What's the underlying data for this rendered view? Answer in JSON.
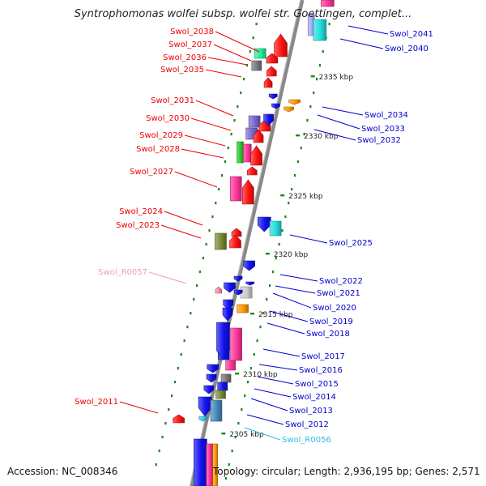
{
  "title": "Syntrophomonas wolfei subsp. wolfei str. Goettingen, complet...",
  "accession_label": "Accession: NC_008346",
  "topology_label": "Topology: circular; Length: 2,936,195 bp; Genes: 2,571",
  "colors": {
    "backbone": "#888888",
    "tick_minor": "#1a8a1a",
    "label_left": "#ee0000",
    "label_right": "#0000cc",
    "label_rna_left": "#f59ab5",
    "label_rna_right": "#33bbe8"
  },
  "scale_labels": [
    "2335 kbp",
    "2330 kbp",
    "2325 kbp",
    "2320 kbp",
    "2315 kbp",
    "2310 kbp",
    "2305 kbp"
  ],
  "genes_left": [
    "Swol_2038",
    "Swol_2037",
    "Swol_2036",
    "Swol_2035",
    "Swol_2031",
    "Swol_2030",
    "Swol_2029",
    "Swol_2028",
    "Swol_2027",
    "Swol_2024",
    "Swol_2023",
    "Swol_R0057",
    "Swol_2011"
  ],
  "genes_right": [
    "Swol_2041",
    "Swol_2040",
    "Swol_2034",
    "Swol_2033",
    "Swol_2032",
    "Swol_2025",
    "Swol_2022",
    "Swol_2021",
    "Swol_2020",
    "Swol_2019",
    "Swol_2018",
    "Swol_2017",
    "Swol_2016",
    "Swol_2015",
    "Swol_2014",
    "Swol_2013",
    "Swol_2012",
    "Swol_R0056"
  ]
}
